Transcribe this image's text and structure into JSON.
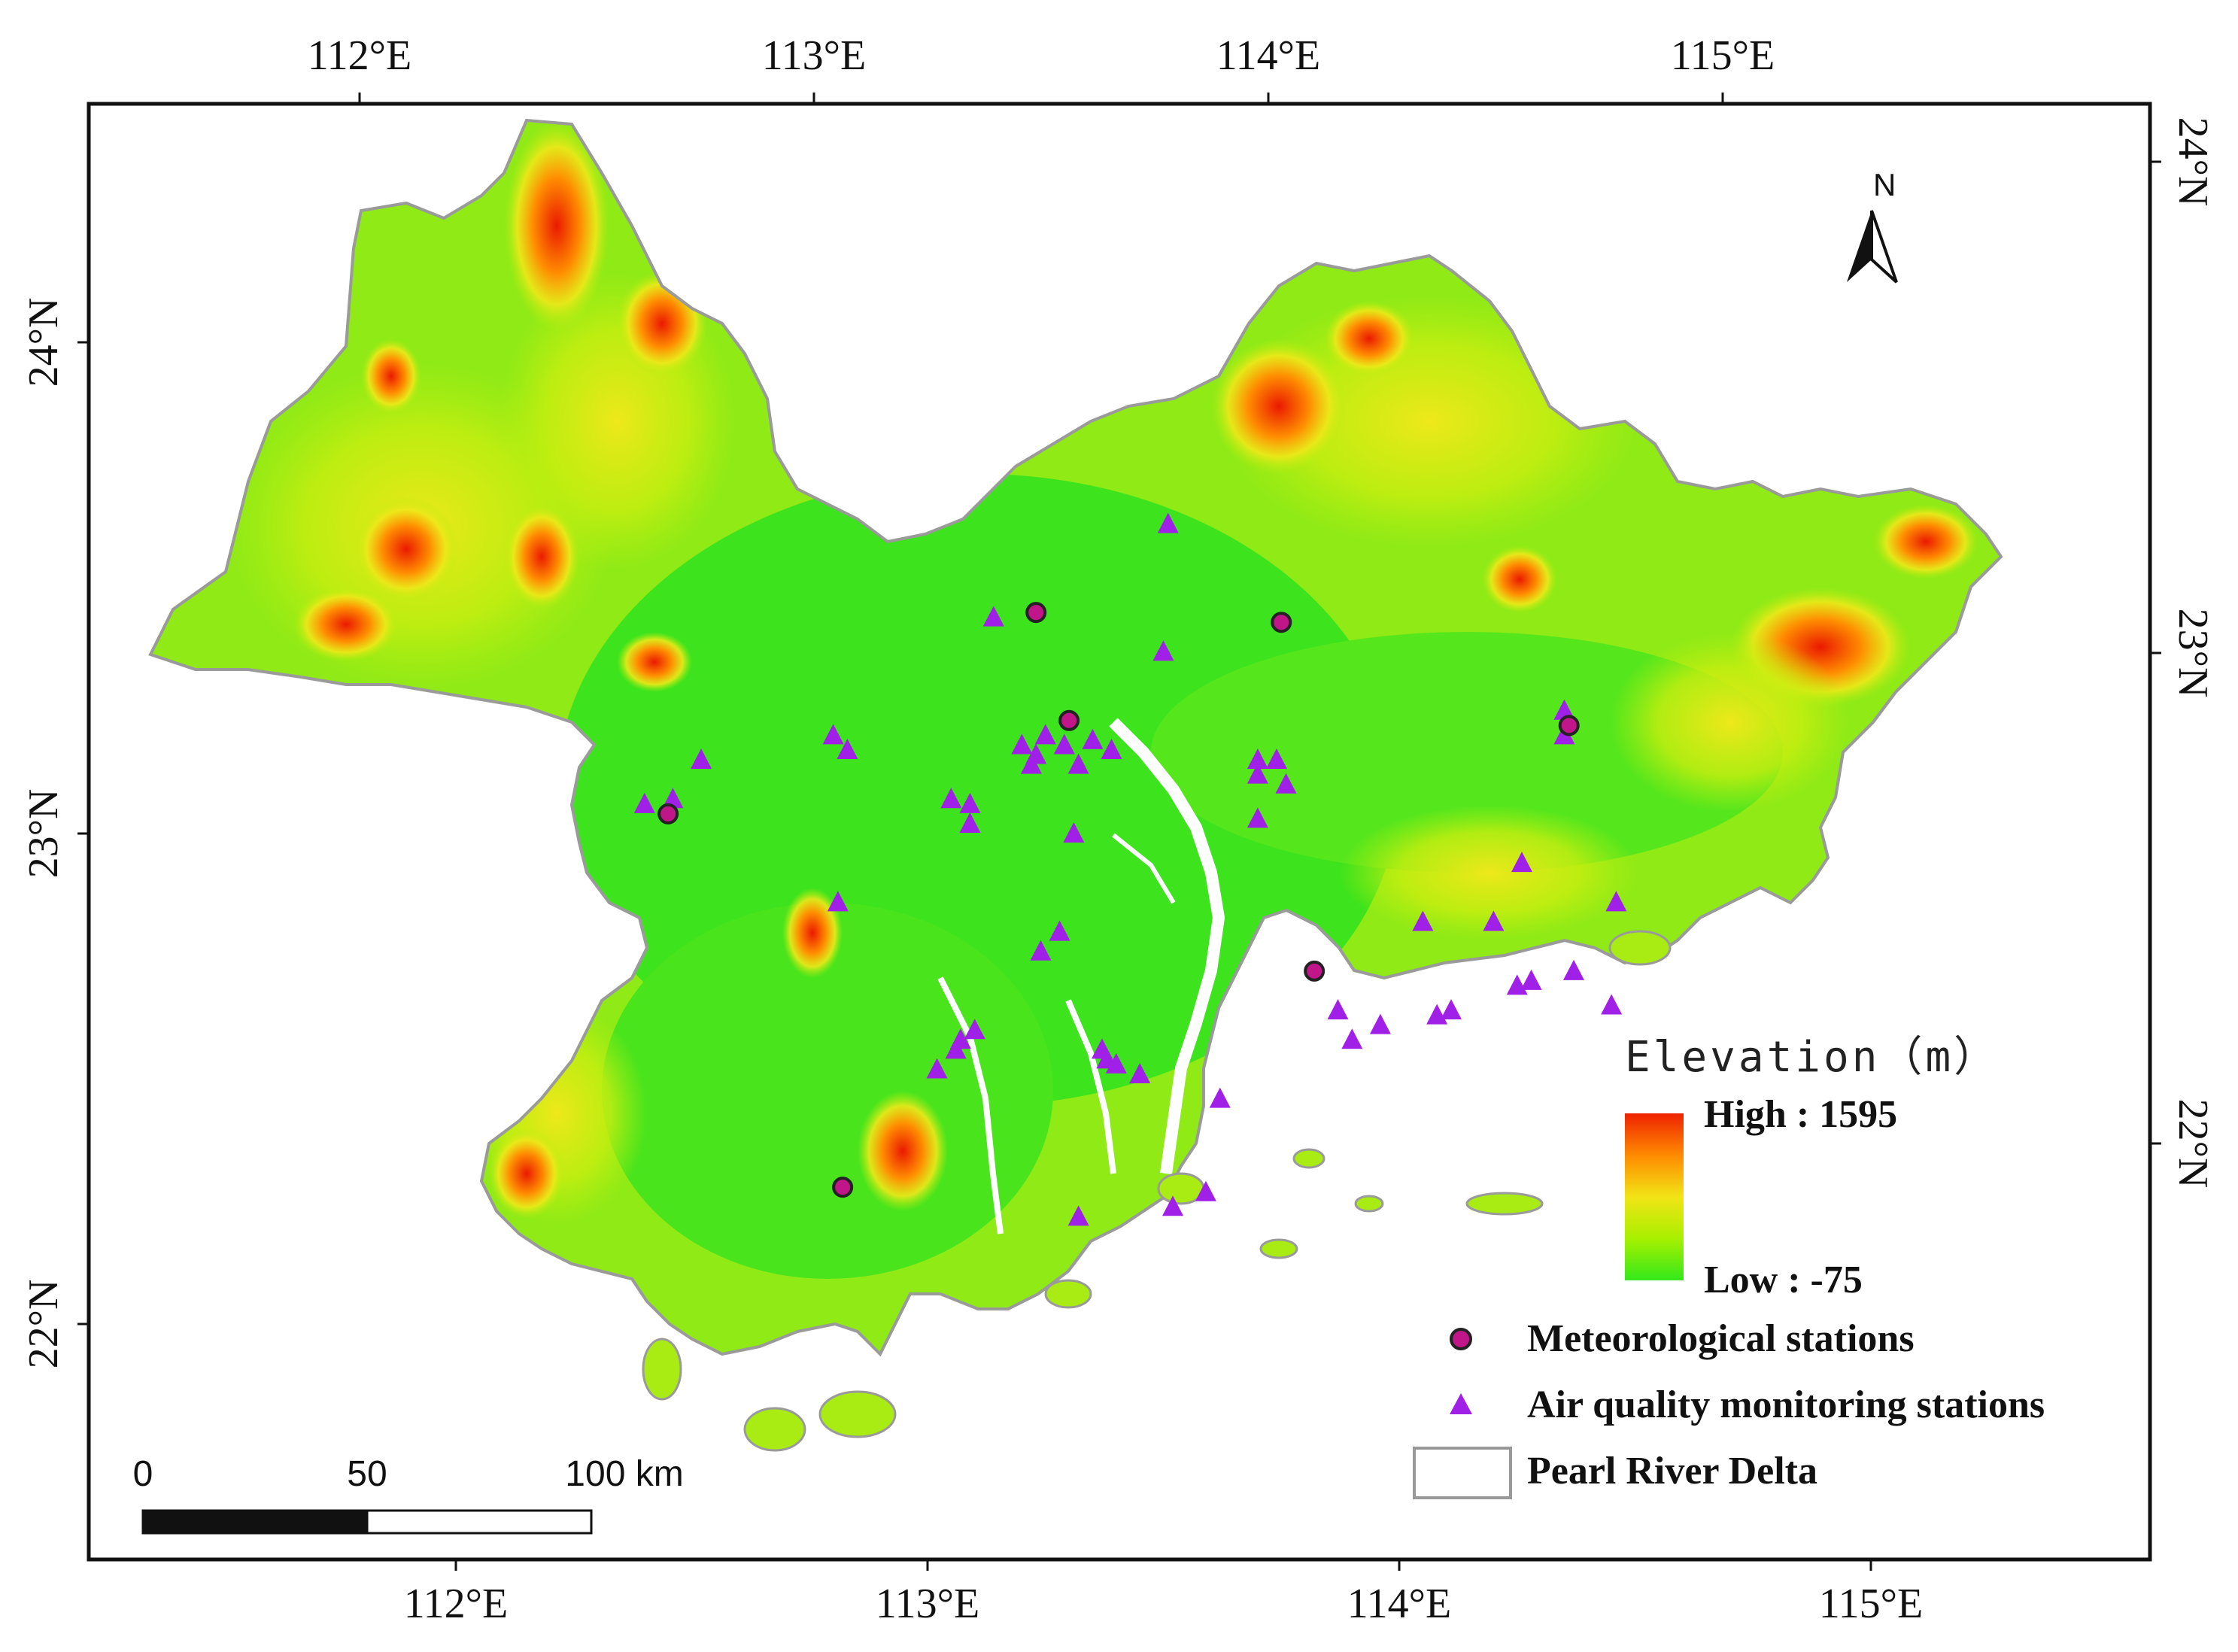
{
  "axes": {
    "top_labels": [
      "112°E",
      "113°E",
      "114°E",
      "115°E"
    ],
    "bottom_labels": [
      "112°E",
      "113°E",
      "114°E",
      "115°E"
    ],
    "left_labels": [
      "24°N",
      "23°N",
      "22°N"
    ],
    "right_labels": [
      "24°N",
      "23°N",
      "22°N"
    ]
  },
  "north_arrow": {
    "letter": "N"
  },
  "legend": {
    "title": "Elevation（m）",
    "high_label": "High : 1595",
    "low_label": "Low : -75",
    "ramp_colors": [
      "#ee2200",
      "#ff8a00",
      "#f2e416",
      "#a8f000",
      "#33e81a"
    ],
    "items": [
      {
        "name": "meteorological",
        "label": "Meteorological stations",
        "color": "#c0168a"
      },
      {
        "name": "air-quality",
        "label": "Air quality monitoring stations",
        "color": "#a020e8"
      },
      {
        "name": "pearl-river-delta",
        "label": "Pearl River Delta",
        "color": "#999999"
      }
    ]
  },
  "scale_bar": {
    "labels": [
      "0",
      "50",
      "100 km"
    ]
  },
  "colors": {
    "low_land": "#3de31c",
    "mid_land": "#b6ee10",
    "yellow": "#eee81a",
    "orange": "#ff8c00",
    "high_red": "#ea1a00"
  },
  "stations": {
    "meteorological": [
      {
        "lon": 113.23,
        "lat": 23.45
      },
      {
        "lon": 113.3,
        "lat": 23.23
      },
      {
        "lon": 113.75,
        "lat": 23.43
      },
      {
        "lon": 114.36,
        "lat": 23.22
      },
      {
        "lon": 112.45,
        "lat": 23.04
      },
      {
        "lon": 113.82,
        "lat": 22.72
      },
      {
        "lon": 112.82,
        "lat": 22.28
      }
    ],
    "air_quality": [
      {
        "lon": 113.51,
        "lat": 23.63
      },
      {
        "lon": 113.14,
        "lat": 23.44
      },
      {
        "lon": 113.5,
        "lat": 23.37
      },
      {
        "lon": 112.8,
        "lat": 23.2
      },
      {
        "lon": 112.83,
        "lat": 23.17
      },
      {
        "lon": 112.52,
        "lat": 23.15
      },
      {
        "lon": 112.4,
        "lat": 23.06
      },
      {
        "lon": 112.46,
        "lat": 23.07
      },
      {
        "lon": 113.2,
        "lat": 23.18
      },
      {
        "lon": 113.23,
        "lat": 23.16
      },
      {
        "lon": 113.25,
        "lat": 23.2
      },
      {
        "lon": 113.29,
        "lat": 23.18
      },
      {
        "lon": 113.32,
        "lat": 23.14
      },
      {
        "lon": 113.35,
        "lat": 23.19
      },
      {
        "lon": 113.39,
        "lat": 23.17
      },
      {
        "lon": 113.22,
        "lat": 23.14
      },
      {
        "lon": 113.05,
        "lat": 23.07
      },
      {
        "lon": 113.09,
        "lat": 23.06
      },
      {
        "lon": 113.09,
        "lat": 23.02
      },
      {
        "lon": 113.31,
        "lat": 23.0
      },
      {
        "lon": 112.81,
        "lat": 22.86
      },
      {
        "lon": 113.28,
        "lat": 22.8
      },
      {
        "lon": 113.24,
        "lat": 22.76
      },
      {
        "lon": 113.7,
        "lat": 23.15
      },
      {
        "lon": 113.74,
        "lat": 23.15
      },
      {
        "lon": 113.7,
        "lat": 23.12
      },
      {
        "lon": 113.76,
        "lat": 23.1
      },
      {
        "lon": 113.7,
        "lat": 23.03
      },
      {
        "lon": 114.35,
        "lat": 23.25
      },
      {
        "lon": 114.35,
        "lat": 23.2
      },
      {
        "lon": 114.26,
        "lat": 22.94
      },
      {
        "lon": 114.46,
        "lat": 22.86
      },
      {
        "lon": 114.05,
        "lat": 22.82
      },
      {
        "lon": 114.2,
        "lat": 22.82
      },
      {
        "lon": 114.37,
        "lat": 22.72
      },
      {
        "lon": 114.28,
        "lat": 22.7
      },
      {
        "lon": 114.25,
        "lat": 22.69
      },
      {
        "lon": 114.45,
        "lat": 22.65
      },
      {
        "lon": 113.87,
        "lat": 22.64
      },
      {
        "lon": 113.96,
        "lat": 22.61
      },
      {
        "lon": 114.08,
        "lat": 22.63
      },
      {
        "lon": 114.11,
        "lat": 22.64
      },
      {
        "lon": 113.9,
        "lat": 22.58
      },
      {
        "lon": 113.1,
        "lat": 22.6
      },
      {
        "lon": 113.07,
        "lat": 22.58
      },
      {
        "lon": 113.06,
        "lat": 22.56
      },
      {
        "lon": 113.02,
        "lat": 22.52
      },
      {
        "lon": 113.37,
        "lat": 22.56
      },
      {
        "lon": 113.38,
        "lat": 22.54
      },
      {
        "lon": 113.4,
        "lat": 22.53
      },
      {
        "lon": 113.45,
        "lat": 22.51
      },
      {
        "lon": 113.62,
        "lat": 22.46
      },
      {
        "lon": 113.59,
        "lat": 22.27
      },
      {
        "lon": 113.52,
        "lat": 22.24
      },
      {
        "lon": 113.32,
        "lat": 22.22
      }
    ]
  }
}
